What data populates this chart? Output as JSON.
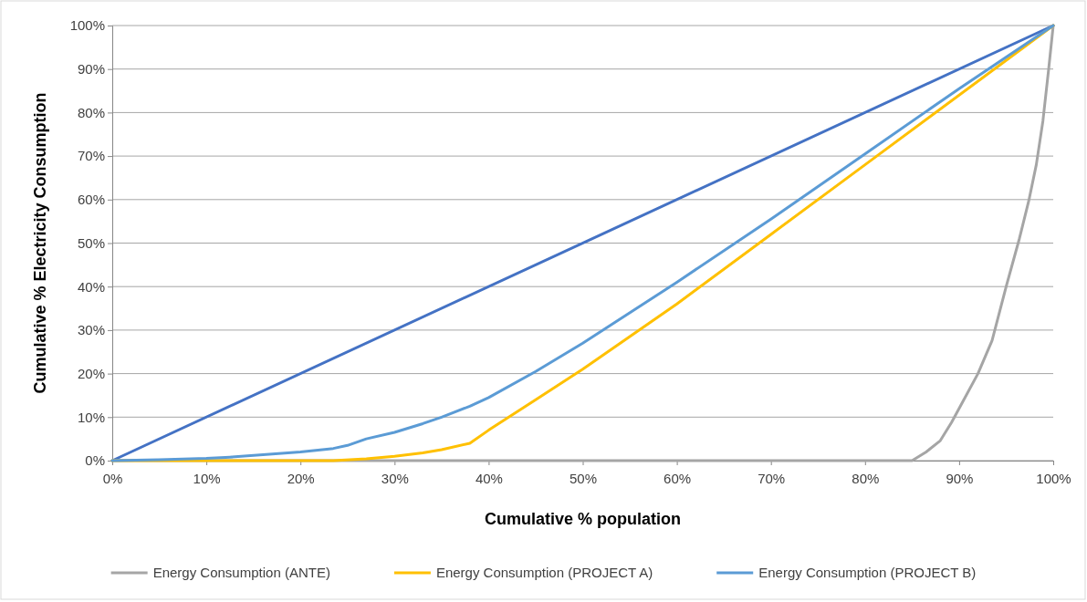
{
  "chart_data": {
    "type": "line",
    "xlabel": "Cumulative % population",
    "ylabel": "Cumulative % Electricity Consumption",
    "xlim": [
      0,
      100
    ],
    "ylim": [
      0,
      100
    ],
    "xticks": [
      {
        "value": 0,
        "label": "0%"
      },
      {
        "value": 10,
        "label": "10%"
      },
      {
        "value": 20,
        "label": "20%"
      },
      {
        "value": 30,
        "label": "30%"
      },
      {
        "value": 40,
        "label": "40%"
      },
      {
        "value": 50,
        "label": "50%"
      },
      {
        "value": 60,
        "label": "60%"
      },
      {
        "value": 70,
        "label": "70%"
      },
      {
        "value": 80,
        "label": "80%"
      },
      {
        "value": 90,
        "label": "90%"
      },
      {
        "value": 100,
        "label": "100%"
      }
    ],
    "yticks": [
      {
        "value": 0,
        "label": "0%"
      },
      {
        "value": 10,
        "label": "10%"
      },
      {
        "value": 20,
        "label": "20%"
      },
      {
        "value": 30,
        "label": "30%"
      },
      {
        "value": 40,
        "label": "40%"
      },
      {
        "value": 50,
        "label": "50%"
      },
      {
        "value": 60,
        "label": "60%"
      },
      {
        "value": 70,
        "label": "70%"
      },
      {
        "value": 80,
        "label": "80%"
      },
      {
        "value": 90,
        "label": "90%"
      },
      {
        "value": 100,
        "label": "100%"
      }
    ],
    "grid": "y",
    "legend": "bottom",
    "marker": "none",
    "line_style": "solid",
    "series": [
      {
        "color": "#4472c4",
        "x": [
          0,
          100
        ],
        "values": [
          0,
          100
        ]
      },
      {
        "name": "Energy Consumption (ANTE)",
        "color": "#a5a5a5",
        "x": [
          0,
          20,
          40,
          60,
          80,
          85,
          86.5,
          88,
          89.2,
          90.5,
          92,
          93.5,
          95,
          96.4,
          97.4,
          98.2,
          98.9,
          99.5,
          100
        ],
        "values": [
          0,
          0,
          0,
          0,
          0,
          0,
          2,
          4.6,
          8.8,
          14,
          20,
          27.6,
          40,
          51,
          59.7,
          68,
          78,
          89.7,
          100
        ]
      },
      {
        "name": "Energy Consumption (PROJECT A)",
        "color": "#ffc000",
        "x": [
          0,
          10,
          20,
          23.5,
          27,
          30,
          33,
          35,
          38,
          40,
          45,
          50,
          55,
          60,
          70,
          80,
          100
        ],
        "values": [
          0,
          0,
          0,
          0,
          0.4,
          1,
          1.8,
          2.5,
          4,
          7,
          14,
          21,
          28.5,
          36,
          52,
          68,
          100
        ]
      },
      {
        "name": "Energy Consumption (PROJECT B)",
        "color": "#5b9bd5",
        "x": [
          0,
          5,
          10,
          12.5,
          20,
          23.5,
          25,
          27,
          30,
          33,
          35,
          38,
          40,
          45,
          50,
          60,
          70,
          80,
          90,
          100
        ],
        "values": [
          0,
          0.2,
          0.5,
          0.8,
          2,
          2.8,
          3.5,
          5,
          6.5,
          8.5,
          10,
          12.5,
          14.5,
          20.5,
          27,
          41,
          55.5,
          70.5,
          85.5,
          100
        ]
      }
    ]
  }
}
